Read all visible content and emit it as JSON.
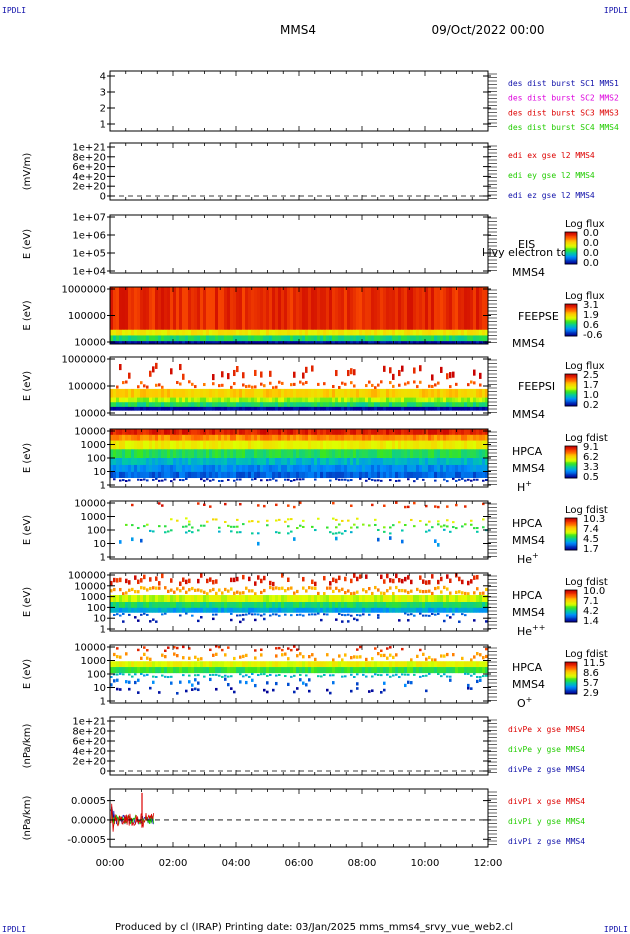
{
  "corner_label": "IPDLI",
  "header": {
    "spacecraft": "MMS4",
    "datetime": "09/Oct/2022 00:00"
  },
  "footer": "Produced by cl (IRAP)   Printing date: 03/Jan/2025   mms_mms4_srvy_vue_web2.cl",
  "colors": {
    "red": "#dd0000",
    "green": "#22cc00",
    "blue": "#1010aa",
    "magenta": "#dd00dd",
    "axis": "#000000"
  },
  "chart_data": {
    "type": "multi-panel time series",
    "x_ticks": [
      "00:00",
      "02:00",
      "04:00",
      "06:00",
      "08:00",
      "10:00",
      "12:00"
    ],
    "x_range_hours": [
      0,
      12
    ],
    "panels": [
      {
        "id": "des-dist-burst",
        "type": "line",
        "ylabel": "",
        "yticks": [
          "4",
          "3",
          "2",
          "1"
        ],
        "legend": [
          {
            "text": "des dist burst SC1 MMS1",
            "color": "#1010aa"
          },
          {
            "text": "des dist burst SC2 MMS2",
            "color": "#dd00dd"
          },
          {
            "text": "des dist burst SC3 MMS3",
            "color": "#dd0000"
          },
          {
            "text": "des dist burst SC4 MMS4",
            "color": "#22cc00"
          }
        ]
      },
      {
        "id": "edi-e",
        "type": "line",
        "ylabel": "(mV/m)",
        "yticks": [
          "1e+21",
          "8e+20",
          "6e+20",
          "4e+20",
          "2e+20",
          "0"
        ],
        "legend": [
          {
            "text": "edi ex gse l2 MMS4",
            "color": "#dd0000"
          },
          {
            "text": "edi ey gse l2 MMS4",
            "color": "#22cc00"
          },
          {
            "text": "edi ez gse l2 MMS4",
            "color": "#1010aa"
          }
        ],
        "zero_line": true
      },
      {
        "id": "eis",
        "type": "heatmap",
        "ylabel": "E (eV)",
        "yticks": [
          "1e+07",
          "1e+06",
          "1e+05",
          "1e+04"
        ],
        "labels": [
          "EIS",
          "MMS4"
        ],
        "overlay_text": "l ivy electron to",
        "colorbar": {
          "title": "Log flux",
          "ticks": [
            "0.0",
            "0.0",
            "0.0",
            "0.0"
          ]
        }
      },
      {
        "id": "feeps-e",
        "type": "heatmap",
        "ylabel": "E (eV)",
        "yticks": [
          "1000000",
          "100000",
          "10000"
        ],
        "labels": [
          "FEEPSE",
          "MMS4"
        ],
        "colorbar": {
          "title": "Log flux",
          "ticks": [
            "3.1",
            "1.9",
            "0.6",
            "-0.6"
          ]
        },
        "time_extent_hours": [
          0,
          12
        ],
        "bands": [
          {
            "from": 0.0,
            "to": 0.75,
            "level": 0.08
          },
          {
            "from": 0.75,
            "to": 0.85,
            "level": 0.38
          },
          {
            "from": 0.85,
            "to": 0.95,
            "level": 0.62
          },
          {
            "from": 0.95,
            "to": 1.0,
            "level": 0.99
          }
        ]
      },
      {
        "id": "feeps-i",
        "type": "heatmap",
        "ylabel": "E (eV)",
        "yticks": [
          "1000000",
          "100000",
          "10000"
        ],
        "labels": [
          "FEEPSI",
          "MMS4"
        ],
        "colorbar": {
          "title": "Log flux",
          "ticks": [
            "2.5",
            "1.7",
            "1.0",
            "0.2"
          ]
        },
        "time_extent_hours": [
          0,
          12
        ],
        "bands": [
          {
            "from": 0.1,
            "to": 0.4,
            "level": 0.05,
            "sparse": 0.28
          },
          {
            "from": 0.4,
            "to": 0.55,
            "level": 0.15,
            "sparse": 0.55
          },
          {
            "from": 0.55,
            "to": 0.7,
            "level": 0.32
          },
          {
            "from": 0.7,
            "to": 0.78,
            "level": 0.48
          },
          {
            "from": 0.78,
            "to": 0.86,
            "level": 0.62
          },
          {
            "from": 0.86,
            "to": 0.92,
            "level": 1.0
          }
        ]
      },
      {
        "id": "hpca-h",
        "type": "heatmap",
        "ylabel": "E (eV)",
        "yticks": [
          "10000",
          "1000",
          "100",
          "10",
          "1"
        ],
        "labels": [
          "HPCA",
          "MMS4"
        ],
        "species": "H",
        "species_sup": "+",
        "colorbar": {
          "title": "Log fdist",
          "ticks": [
            "9.1",
            "6.2",
            "3.3",
            "0.5"
          ]
        },
        "time_extent_hours": [
          0,
          12
        ],
        "bands": [
          {
            "from": 0.0,
            "to": 0.1,
            "level": 0.06
          },
          {
            "from": 0.1,
            "to": 0.2,
            "level": 0.22
          },
          {
            "from": 0.2,
            "to": 0.35,
            "level": 0.4
          },
          {
            "from": 0.35,
            "to": 0.5,
            "level": 0.6
          },
          {
            "from": 0.5,
            "to": 0.62,
            "level": 0.72
          },
          {
            "from": 0.62,
            "to": 0.74,
            "level": 0.8
          },
          {
            "from": 0.74,
            "to": 0.84,
            "level": 0.86
          },
          {
            "from": 0.84,
            "to": 0.9,
            "level": 0.95,
            "sparse": 0.6
          }
        ]
      },
      {
        "id": "hpca-he",
        "type": "heatmap",
        "ylabel": "E (eV)",
        "yticks": [
          "10000",
          "1000",
          "100",
          "10",
          "1"
        ],
        "labels": [
          "HPCA",
          "MMS4"
        ],
        "species": "He",
        "species_sup": "+",
        "colorbar": {
          "title": "Log fdist",
          "ticks": [
            "10.3",
            "7.4",
            "4.5",
            "1.7"
          ]
        },
        "time_extent_hours": [
          0,
          12
        ],
        "bands": [
          {
            "from": 0.0,
            "to": 0.12,
            "level": 0.08,
            "sparse": 0.18
          },
          {
            "from": 0.28,
            "to": 0.38,
            "level": 0.4,
            "sparse": 0.3
          },
          {
            "from": 0.38,
            "to": 0.48,
            "level": 0.55,
            "sparse": 0.4
          },
          {
            "from": 0.48,
            "to": 0.58,
            "level": 0.68,
            "sparse": 0.3
          },
          {
            "from": 0.6,
            "to": 0.78,
            "level": 0.82,
            "sparse": 0.12
          }
        ]
      },
      {
        "id": "hpca-hepp",
        "type": "heatmap",
        "ylabel": "E (eV)",
        "yticks": [
          "100000",
          "10000",
          "1000",
          "100",
          "10",
          "1"
        ],
        "labels": [
          "HPCA",
          "MMS4"
        ],
        "species": "He",
        "species_sup": "++",
        "colorbar": {
          "title": "Log fdist",
          "ticks": [
            "10.0",
            "7.1",
            "4.2",
            "1.4"
          ]
        },
        "time_extent_hours": [
          0,
          12
        ],
        "bands": [
          {
            "from": 0.0,
            "to": 0.22,
            "level": 0.06,
            "sparse": 0.65
          },
          {
            "from": 0.22,
            "to": 0.38,
            "level": 0.25,
            "sparse": 0.85
          },
          {
            "from": 0.38,
            "to": 0.5,
            "level": 0.45
          },
          {
            "from": 0.5,
            "to": 0.6,
            "level": 0.62
          },
          {
            "from": 0.6,
            "to": 0.68,
            "level": 0.76
          },
          {
            "from": 0.68,
            "to": 0.74,
            "level": 0.88,
            "sparse": 0.55
          },
          {
            "from": 0.74,
            "to": 0.86,
            "level": 0.97,
            "sparse": 0.2
          }
        ]
      },
      {
        "id": "hpca-o",
        "type": "heatmap",
        "ylabel": "E (eV)",
        "yticks": [
          "10000",
          "1000",
          "100",
          "10",
          "1"
        ],
        "labels": [
          "HPCA",
          "MMS4"
        ],
        "species": "O",
        "species_sup": "+",
        "colorbar": {
          "title": "Log fdist",
          "ticks": [
            "11.5",
            "8.6",
            "5.7",
            "2.9"
          ]
        },
        "time_extent_hours": [
          0,
          12
        ],
        "bands": [
          {
            "from": 0.0,
            "to": 0.12,
            "level": 0.08,
            "sparse": 0.3
          },
          {
            "from": 0.12,
            "to": 0.28,
            "level": 0.25,
            "sparse": 0.6
          },
          {
            "from": 0.28,
            "to": 0.38,
            "level": 0.42
          },
          {
            "from": 0.38,
            "to": 0.48,
            "level": 0.58
          },
          {
            "from": 0.48,
            "to": 0.56,
            "level": 0.72,
            "sparse": 0.7
          },
          {
            "from": 0.56,
            "to": 0.72,
            "level": 0.85,
            "sparse": 0.3
          },
          {
            "from": 0.72,
            "to": 0.85,
            "level": 0.97,
            "sparse": 0.2
          }
        ]
      },
      {
        "id": "divpe",
        "type": "line",
        "ylabel": "(nPa/km)",
        "yticks": [
          "1e+21",
          "8e+20",
          "6e+20",
          "4e+20",
          "2e+20",
          "0"
        ],
        "legend": [
          {
            "text": "divPe x gse MMS4",
            "color": "#dd0000"
          },
          {
            "text": "divPe y gse MMS4",
            "color": "#22cc00"
          },
          {
            "text": "divPe z gse MMS4",
            "color": "#1010aa"
          }
        ],
        "zero_line": true
      },
      {
        "id": "divpi",
        "type": "line",
        "ylabel": "(nPa/km)",
        "yticks": [
          "0.0005",
          "0.0000",
          "-0.0005"
        ],
        "ylim": [
          -0.0007,
          0.0008
        ],
        "legend": [
          {
            "text": "divPi x gse MMS4",
            "color": "#dd0000"
          },
          {
            "text": "divPi y gse MMS4",
            "color": "#22cc00"
          },
          {
            "text": "divPi z gse MMS4",
            "color": "#1010aa"
          }
        ],
        "zero_line": true,
        "data_extent_hours": [
          0,
          1.4
        ]
      }
    ]
  }
}
